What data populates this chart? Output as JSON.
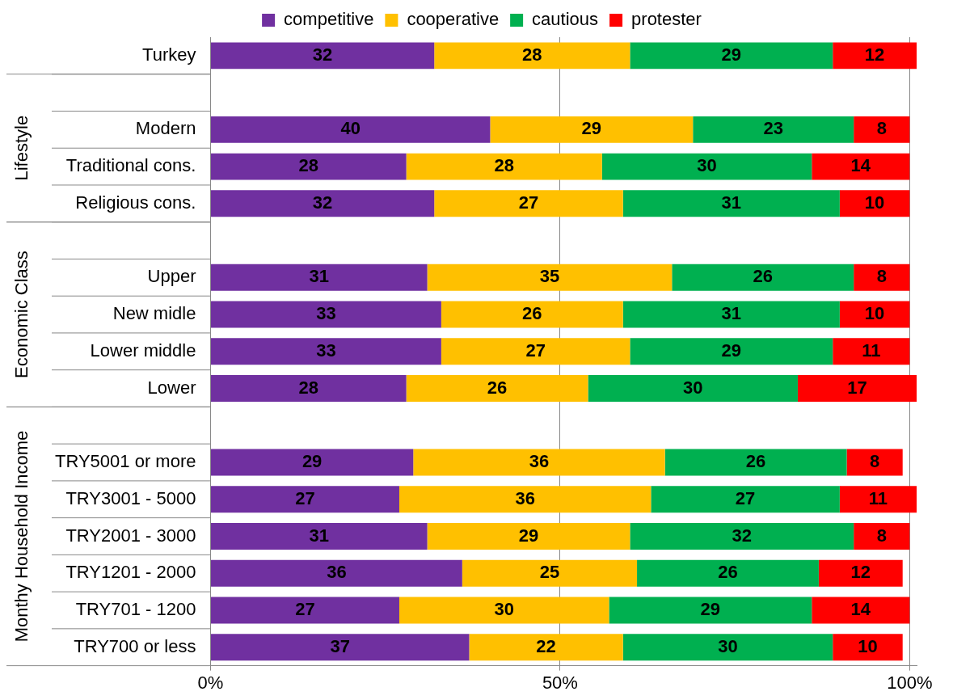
{
  "chart_data": {
    "type": "bar",
    "orientation": "horizontal",
    "stacked": true,
    "data_labels": true,
    "grid": "x",
    "legend": "top",
    "categories": [
      "Turkey",
      null,
      "Modern",
      "Traditional cons.",
      "Religious cons.",
      null,
      "Upper",
      "New midle",
      "Lower middle",
      "Lower",
      null,
      "TRY5001 or more",
      "TRY3001 - 5000",
      "TRY2001 - 3000",
      "TRY1201 - 2000",
      "TRY701 - 1200",
      "TRY700 or less"
    ],
    "xlim": [
      0,
      101
    ],
    "xticks": [
      {
        "value": 0,
        "label": "0%"
      },
      {
        "value": 50,
        "label": "50%"
      },
      {
        "value": 100,
        "label": "100%"
      }
    ],
    "annotations": [
      "Lifestyle",
      "Economic Class",
      "Monthy Household Income"
    ],
    "series": [
      {
        "name": "competitive",
        "color": "#7030a0",
        "values": [
          32,
          null,
          40,
          28,
          32,
          null,
          31,
          33,
          33,
          28,
          null,
          29,
          27,
          31,
          36,
          27,
          37
        ]
      },
      {
        "name": "cooperative",
        "color": "#ffc000",
        "values": [
          28,
          null,
          29,
          28,
          27,
          null,
          35,
          26,
          27,
          26,
          null,
          36,
          36,
          29,
          25,
          30,
          22
        ]
      },
      {
        "name": "cautious",
        "color": "#00b050",
        "values": [
          29,
          null,
          23,
          30,
          31,
          null,
          26,
          31,
          29,
          30,
          null,
          26,
          27,
          32,
          26,
          29,
          30
        ]
      },
      {
        "name": "protester",
        "color": "#ff0000",
        "values": [
          12,
          null,
          8,
          14,
          10,
          null,
          8,
          10,
          11,
          17,
          null,
          8,
          11,
          8,
          12,
          14,
          10
        ]
      }
    ]
  }
}
